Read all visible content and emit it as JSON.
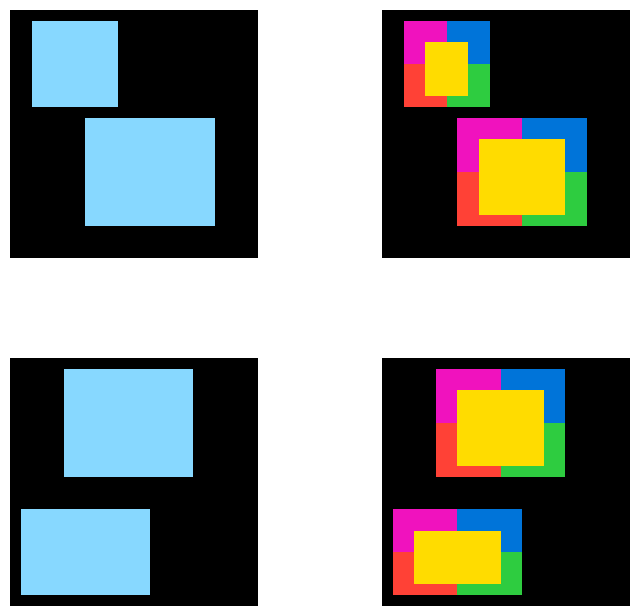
{
  "colors": {
    "background": "#000000",
    "canvas": "#ffffff",
    "blue": "#87d8ff",
    "magenta": "#f012be",
    "azure": "#0074d9",
    "red": "#ff4136",
    "green": "#2ecc40",
    "yellow": "#ffdc00"
  },
  "grid_cells": 23,
  "examples": [
    {
      "input": {
        "name": "example-1-input",
        "shapes": [
          {
            "color": "blue",
            "row": 1,
            "col": 2,
            "rows": 8,
            "cols": 8
          },
          {
            "color": "blue",
            "row": 10,
            "col": 7,
            "rows": 10,
            "cols": 12
          }
        ]
      },
      "output": {
        "name": "example-1-output",
        "shapes": [
          {
            "kind": "quad",
            "row": 1,
            "col": 2,
            "rows": 8,
            "cols": 8
          },
          {
            "kind": "quad",
            "row": 10,
            "col": 7,
            "rows": 10,
            "cols": 12
          }
        ]
      }
    },
    {
      "input": {
        "name": "example-2-input",
        "shapes": [
          {
            "color": "blue",
            "row": 1,
            "col": 5,
            "rows": 10,
            "cols": 12
          },
          {
            "color": "blue",
            "row": 14,
            "col": 1,
            "rows": 8,
            "cols": 12
          }
        ]
      },
      "output": {
        "name": "example-2-output",
        "shapes": [
          {
            "kind": "quad",
            "row": 1,
            "col": 5,
            "rows": 10,
            "cols": 12
          },
          {
            "kind": "quad",
            "row": 14,
            "col": 1,
            "rows": 8,
            "cols": 12
          }
        ]
      }
    }
  ]
}
